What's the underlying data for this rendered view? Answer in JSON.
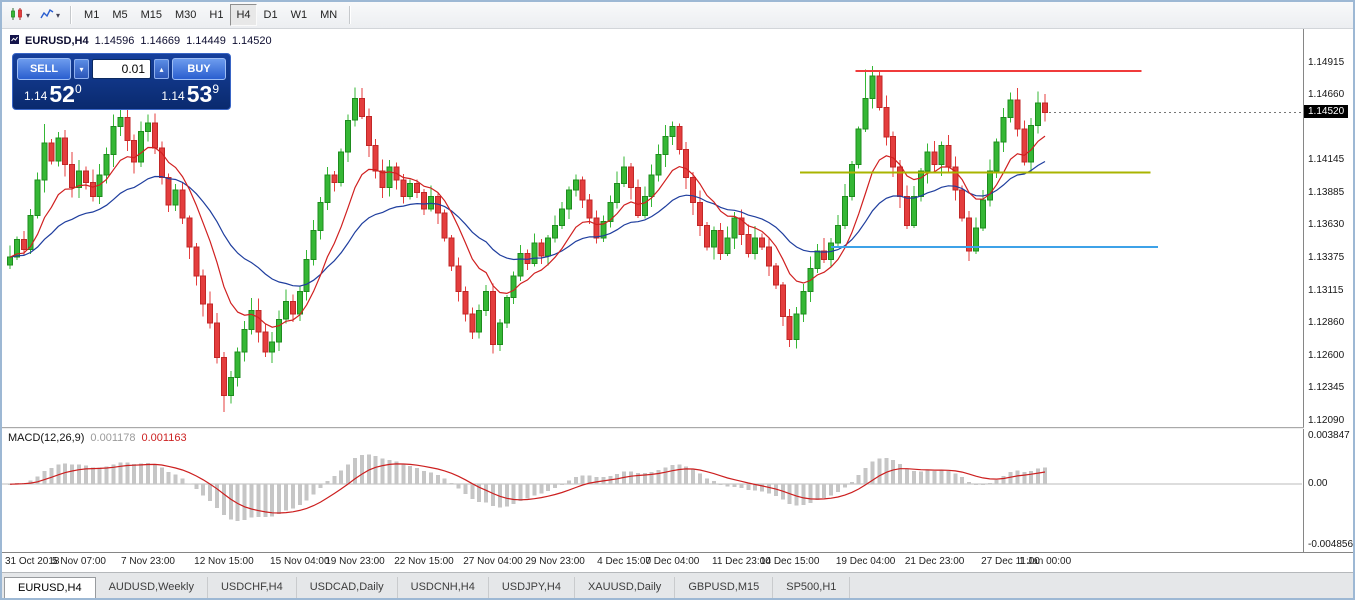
{
  "toolbar": {
    "icons": [
      {
        "name": "chart-type-icon"
      },
      {
        "name": "indicator-icon"
      }
    ],
    "timeframes": [
      {
        "label": "M1",
        "active": false
      },
      {
        "label": "M5",
        "active": false
      },
      {
        "label": "M15",
        "active": false
      },
      {
        "label": "M30",
        "active": false
      },
      {
        "label": "H1",
        "active": false
      },
      {
        "label": "H4",
        "active": true
      },
      {
        "label": "D1",
        "active": false
      },
      {
        "label": "W1",
        "active": false
      },
      {
        "label": "MN",
        "active": false
      }
    ]
  },
  "chart": {
    "title": {
      "symbol_period": "EURUSD,H4",
      "open": "1.14596",
      "high": "1.14669",
      "low": "1.14449",
      "close": "1.14520"
    },
    "trade_panel": {
      "sell_label": "SELL",
      "buy_label": "BUY",
      "volume": "0.01",
      "sell_price": {
        "prefix": "1.14",
        "big": "52",
        "sup": "0"
      },
      "buy_price": {
        "prefix": "1.14",
        "big": "53",
        "sup": "9"
      }
    },
    "price_axis": {
      "labels": [
        "1.14915",
        "1.14660",
        "1.14145",
        "1.13885",
        "1.13630",
        "1.13375",
        "1.13115",
        "1.12860",
        "1.12600",
        "1.12345",
        "1.12090"
      ],
      "current_price_tag": "1.14520"
    },
    "time_axis": {
      "labels": [
        {
          "text": "31 Oct 2018",
          "i": 0
        },
        {
          "text": "5 Nov 07:00",
          "i": 10
        },
        {
          "text": "7 Nov 23:00",
          "i": 20
        },
        {
          "text": "12 Nov 15:00",
          "i": 31
        },
        {
          "text": "15 Nov 04:00",
          "i": 42
        },
        {
          "text": "19 Nov 23:00",
          "i": 50
        },
        {
          "text": "22 Nov 15:00",
          "i": 60
        },
        {
          "text": "27 Nov 04:00",
          "i": 70
        },
        {
          "text": "29 Nov 23:00",
          "i": 79
        },
        {
          "text": "4 Dec 15:00",
          "i": 89
        },
        {
          "text": "7 Dec 04:00",
          "i": 96
        },
        {
          "text": "11 Dec 23:00",
          "i": 106
        },
        {
          "text": "14 Dec 15:00",
          "i": 113
        },
        {
          "text": "19 Dec 04:00",
          "i": 124
        },
        {
          "text": "21 Dec 23:00",
          "i": 134
        },
        {
          "text": "27 Dec 11:00",
          "i": 145
        },
        {
          "text": "1 Jan 00:00",
          "i": 150
        }
      ]
    }
  },
  "chart_data": {
    "type": "candlestick",
    "symbol": "EURUSD",
    "period": "H4",
    "price_range": {
      "top": 1.1518,
      "bottom": 1.1204
    },
    "first_open": 1.1332,
    "closes": [
      1.1338,
      1.1352,
      1.1344,
      1.1371,
      1.1399,
      1.1428,
      1.1414,
      1.1432,
      1.1411,
      1.1393,
      1.1406,
      1.1397,
      1.1386,
      1.1403,
      1.1419,
      1.1441,
      1.1448,
      1.143,
      1.1413,
      1.1437,
      1.1444,
      1.1424,
      1.1401,
      1.1379,
      1.1391,
      1.1369,
      1.1346,
      1.1323,
      1.1301,
      1.1286,
      1.1259,
      1.1229,
      1.1243,
      1.1263,
      1.1281,
      1.1296,
      1.1279,
      1.1263,
      1.1271,
      1.1289,
      1.1303,
      1.1293,
      1.1311,
      1.1336,
      1.1359,
      1.1381,
      1.1403,
      1.1397,
      1.1421,
      1.1446,
      1.1463,
      1.1449,
      1.1426,
      1.1406,
      1.1393,
      1.1409,
      1.1399,
      1.1386,
      1.1396,
      1.1389,
      1.1376,
      1.1386,
      1.1373,
      1.1353,
      1.1331,
      1.1311,
      1.1293,
      1.1279,
      1.1296,
      1.1311,
      1.1269,
      1.1286,
      1.1306,
      1.1323,
      1.1341,
      1.1333,
      1.1349,
      1.1339,
      1.1353,
      1.1363,
      1.1376,
      1.1391,
      1.1399,
      1.1383,
      1.1369,
      1.1353,
      1.1366,
      1.1381,
      1.1396,
      1.1409,
      1.1393,
      1.1371,
      1.1386,
      1.1403,
      1.1419,
      1.1433,
      1.1441,
      1.1423,
      1.1401,
      1.1381,
      1.1363,
      1.1346,
      1.1359,
      1.1341,
      1.1353,
      1.1369,
      1.1356,
      1.1341,
      1.1353,
      1.1346,
      1.1331,
      1.1316,
      1.1291,
      1.1273,
      1.1293,
      1.1311,
      1.1329,
      1.1343,
      1.1336,
      1.1349,
      1.1363,
      1.1386,
      1.1411,
      1.1439,
      1.1463,
      1.1481,
      1.1456,
      1.1433,
      1.1409,
      1.1386,
      1.1363,
      1.1386,
      1.1406,
      1.1421,
      1.1411,
      1.1426,
      1.1409,
      1.1391,
      1.1369,
      1.1343,
      1.1361,
      1.1383,
      1.1406,
      1.1429,
      1.1448,
      1.1462,
      1.1439,
      1.1413,
      1.1442,
      1.14596,
      1.1452
    ],
    "wick_overrides": {
      "5": {
        "h": 1.1443
      },
      "16": {
        "h": 1.1456
      },
      "31": {
        "l": 1.1216
      },
      "50": {
        "h": 1.1472
      },
      "70": {
        "l": 1.1262
      },
      "96": {
        "h": 1.1445
      },
      "113": {
        "l": 1.1267
      },
      "124": {
        "h": 1.1486
      },
      "125": {
        "h": 1.1489
      },
      "139": {
        "l": 1.1335
      },
      "145": {
        "h": 1.1468
      },
      "150": {
        "h": 1.14669,
        "l": 1.14449
      }
    },
    "indicators": {
      "ma_fast": {
        "type": "EMA",
        "period": 10,
        "color": "#d02020"
      },
      "ma_slow": {
        "type": "EMA",
        "period": 26,
        "color": "#1f3e9e"
      },
      "macd": {
        "label": "MACD(12,26,9)",
        "value": "0.001178",
        "signal_value": "0.001163",
        "fast": 12,
        "slow": 26,
        "signal": 9,
        "range": {
          "top": 0.004401,
          "bottom": -0.005409
        },
        "axis_labels": [
          "0.003847",
          "0.00",
          "-0.004856"
        ],
        "hist_color": "#c6c6c6",
        "signal_color": "#cc1f1f"
      }
    },
    "objects": {
      "hlines": [
        {
          "name": "resistance-line",
          "price": 1.1485,
          "i1": 122.5,
          "i2": 164.0,
          "color": "#f03b3b"
        },
        {
          "name": "pivot-line",
          "price": 1.14047,
          "i1": 114.5,
          "i2": 165.3,
          "color": "#aab400"
        },
        {
          "name": "support-line",
          "price": 1.1346,
          "i1": 119.0,
          "i2": 166.4,
          "color": "#3da2e8"
        }
      ]
    },
    "colors": {
      "up": "#35b735",
      "up_border": "#1e8c1e",
      "down": "#e43d3d",
      "down_border": "#c12727"
    }
  },
  "bottom_tabs": [
    {
      "label": "EURUSD,H4",
      "active": true
    },
    {
      "label": "AUDUSD,Weekly",
      "active": false
    },
    {
      "label": "USDCHF,H4",
      "active": false
    },
    {
      "label": "USDCAD,Daily",
      "active": false
    },
    {
      "label": "USDCNH,H4",
      "active": false
    },
    {
      "label": "USDJPY,H4",
      "active": false
    },
    {
      "label": "XAUUSD,Daily",
      "active": false
    },
    {
      "label": "GBPUSD,M15",
      "active": false
    },
    {
      "label": "SP500,H1",
      "active": false
    }
  ]
}
